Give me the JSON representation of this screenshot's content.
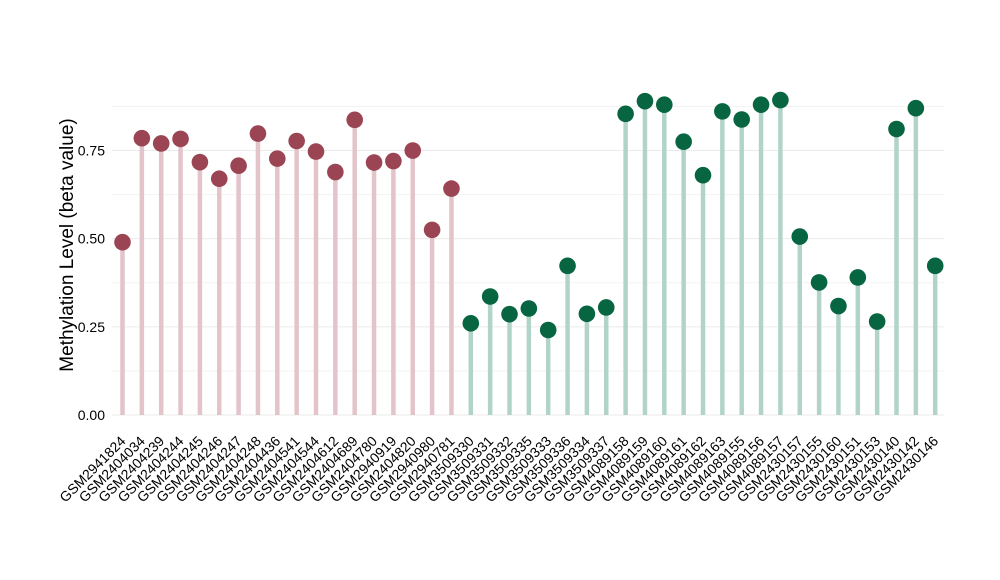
{
  "chart_data": {
    "type": "scatter",
    "subtype": "lollipop",
    "title": "",
    "xlabel": "",
    "ylabel": "Methylation Level (beta value)",
    "ylim": [
      0,
      0.95
    ],
    "yticks": [
      0.0,
      0.25,
      0.5,
      0.75
    ],
    "ytick_labels": [
      "0.00",
      "0.25",
      "0.50",
      "0.75"
    ],
    "grid": true,
    "legend": "none",
    "groups": [
      {
        "color_point": "#9b4453",
        "color_stem": "#e2c4ca",
        "categories": [
          "GSM2941824",
          "GSM2404034",
          "GSM2404239",
          "GSM2404244",
          "GSM2404245",
          "GSM2404246",
          "GSM2404247",
          "GSM2404248",
          "GSM2404436",
          "GSM2404541",
          "GSM2404544",
          "GSM2404612",
          "GSM2404689",
          "GSM2404780",
          "GSM2940919",
          "GSM2404820",
          "GSM2940980",
          "GSM2940781"
        ],
        "values": [
          0.49,
          0.785,
          0.77,
          0.783,
          0.717,
          0.67,
          0.707,
          0.798,
          0.727,
          0.777,
          0.747,
          0.689,
          0.837,
          0.716,
          0.72,
          0.75,
          0.525,
          0.642
        ]
      },
      {
        "color_point": "#076641",
        "color_stem": "#b2d4c8",
        "categories": [
          "GSM3509330",
          "GSM3509331",
          "GSM3509332",
          "GSM3509335",
          "GSM3509333",
          "GSM3509336",
          "GSM3509334",
          "GSM3509337",
          "GSM4089158",
          "GSM4089159",
          "GSM4089160",
          "GSM4089161",
          "GSM4089162",
          "GSM4089163",
          "GSM4089155",
          "GSM4089156",
          "GSM4089157",
          "GSM2430157",
          "GSM2430155",
          "GSM2430160",
          "GSM2430151",
          "GSM2430153",
          "GSM2430140",
          "GSM2430142",
          "GSM2430146"
        ],
        "values": [
          0.26,
          0.336,
          0.286,
          0.302,
          0.241,
          0.423,
          0.287,
          0.305,
          0.854,
          0.89,
          0.88,
          0.775,
          0.68,
          0.861,
          0.838,
          0.88,
          0.893,
          0.506,
          0.376,
          0.309,
          0.39,
          0.265,
          0.811,
          0.87,
          0.423
        ]
      }
    ]
  }
}
